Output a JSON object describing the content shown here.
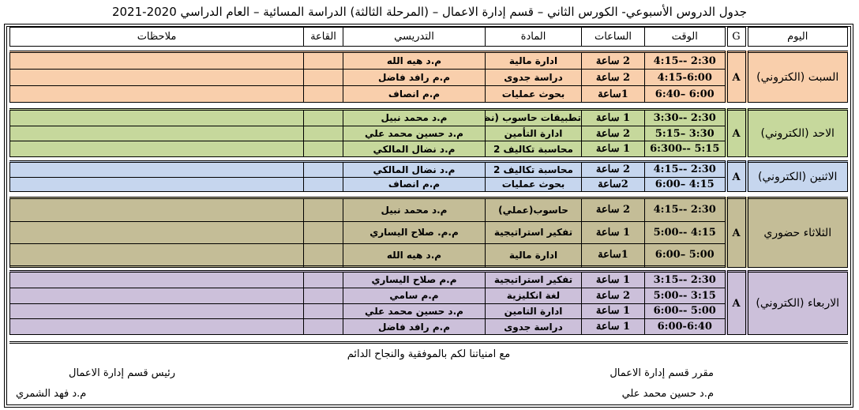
{
  "title": "جدول الدروس الأسبوعي- الكورس الثاني – قسم إدارة الاعمال – (المرحلة الثالثة) الدراسة المسائية – العام الدراسي 2020-2021",
  "headers": {
    "day": "اليوم",
    "group": "G",
    "time": "الوقت",
    "hours": "الساعات",
    "subject": "المادة",
    "teacher": "التدريسي",
    "hall": "القاعة",
    "notes": "ملاحظات"
  },
  "days": [
    {
      "name": "السبت (الكتروني)",
      "group": "A",
      "color": "#f9cfac",
      "slots": [
        {
          "time": "2:30 --4:15",
          "hours": "2 ساعة",
          "subject": "ادارة مالية",
          "teacher": "م.د هيه الله"
        },
        {
          "time": "4:15-6:00",
          "hours": "2 ساعة",
          "subject": "دراسة جدوى",
          "teacher": "م.م رافد فاضل"
        },
        {
          "time": "6:00 –6:40",
          "hours": "1ساعة",
          "subject": "بحوث عمليات",
          "teacher": "م.م انصاف"
        }
      ]
    },
    {
      "name": "الاحد (الكتروني)",
      "group": "A",
      "color": "#c6d89c",
      "slots": [
        {
          "time": "2:30 --3:30",
          "hours": "1 ساعة",
          "subject": "تطبيقات حاسوب (نظري)",
          "teacher": "م.د محمد نبيل"
        },
        {
          "time": "3:30 –5:15",
          "hours": "2 ساعة",
          "subject": "ادارة التأمين",
          "teacher": "م.د حسين محمد علي"
        },
        {
          "time": "5:15 --6:300",
          "hours": "1 ساعة",
          "subject": "محاسبة تكاليف 2",
          "teacher": "م.د نضال المالكي"
        }
      ]
    },
    {
      "name": "الاثنين (الكتروني)",
      "group": "A",
      "color": "#c6d6ee",
      "slots": [
        {
          "time": "2:30 --4:15",
          "hours": "2 ساعة",
          "subject": "محاسبة تكاليف 2",
          "teacher": "م.د نضال المالكي"
        },
        {
          "time": "4:15 –6:00",
          "hours": "2ساعة",
          "subject": "بحوث عمليات",
          "teacher": "م.م انصاف"
        }
      ]
    },
    {
      "name": "الثلاثاء حضوري",
      "group": "A",
      "color": "#c4bd97",
      "slots": [
        {
          "time": "2:30 --4:15",
          "hours": "2 ساعة",
          "subject": "حاسوب(عملي)",
          "teacher": "م.د محمد نبيل"
        },
        {
          "time": "4:15 --5:00",
          "hours": "1 ساعة",
          "subject": "تفكير استراتيجية",
          "teacher": "م.م. صلاح اليساري"
        },
        {
          "time": "5:00 –6:00",
          "hours": "1ساعة",
          "subject": "ادارة مالية",
          "teacher": "م.د هيه الله"
        },
        {
          "time": "",
          "hours": "",
          "subject": "",
          "teacher": ""
        }
      ]
    },
    {
      "name": "الاربعاء (الكتروني)",
      "group": "A",
      "color": "#ccc0da",
      "slots": [
        {
          "time": "2:30 --3:15",
          "hours": "1 ساعة",
          "subject": "تفكير استراتيجية",
          "teacher": "م.م صلاح اليساري"
        },
        {
          "time": "3:15 --5:00",
          "hours": "2 ساعة",
          "subject": "لغة انكليزية",
          "teacher": "م.م سامي"
        },
        {
          "time": "5:00 --6:00",
          "hours": "1 ساعة",
          "subject": "ادارة التامين",
          "teacher": "م.د حسين محمد علي"
        },
        {
          "time": "6:00-6:40",
          "hours": "1 ساعة",
          "subject": "دراسة جدوى",
          "teacher": "م.م رافد فاضل"
        }
      ]
    }
  ],
  "footer": {
    "wish": "مع امنياتنا لكم بالموفقية والنجاح الدائم",
    "rapporteur_title": "مقرر قسم إدارة الاعمال",
    "rapporteur_name": "م.د حسين محمد علي",
    "head_title": "رئيس قسم إدارة الاعمال",
    "head_name": "م.د فهد الشمري"
  }
}
